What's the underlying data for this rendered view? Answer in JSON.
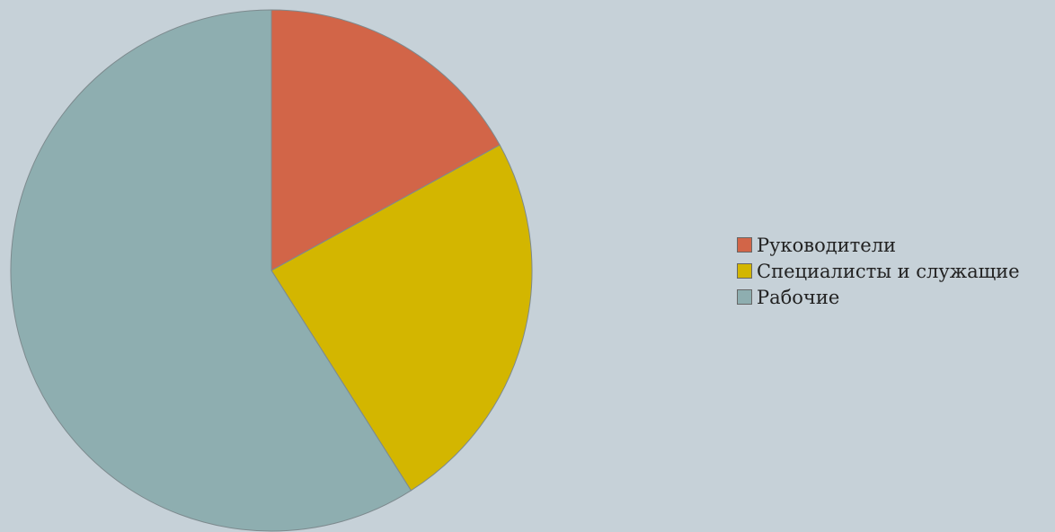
{
  "chart_data": {
    "type": "pie",
    "title": "",
    "categories": [
      "Руководители",
      "Специалисты и служащие",
      "Рабочие"
    ],
    "values": [
      17,
      24,
      59
    ],
    "colors": [
      "#d26548",
      "#d3b600",
      "#8eaeb0"
    ],
    "legend_position": "right"
  }
}
